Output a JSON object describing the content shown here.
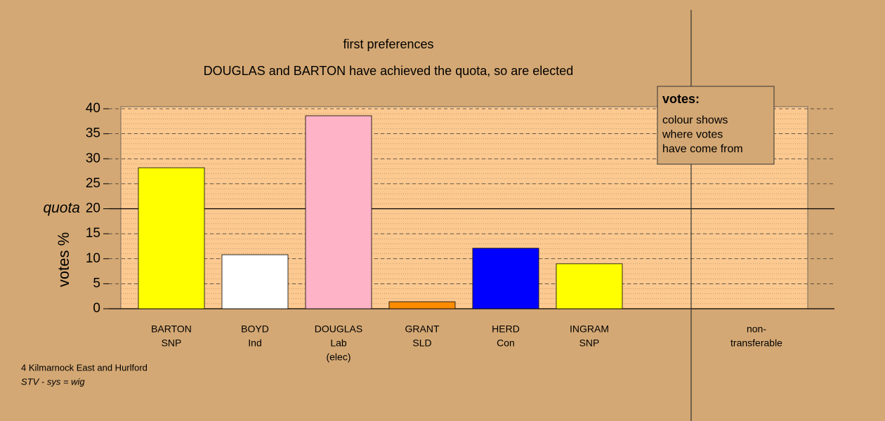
{
  "chart_data": {
    "type": "bar",
    "title": "first preferences",
    "subtitle": "DOUGLAS and BARTON have achieved the quota, so are elected",
    "y_label": "votes %",
    "quota_label": "quota",
    "quota": 20,
    "categories": [
      [
        "BARTON",
        "SNP"
      ],
      [
        "BOYD",
        "Ind"
      ],
      [
        "DOUGLAS",
        "Lab",
        "(elec)"
      ],
      [
        "GRANT",
        "SLD"
      ],
      [
        "HERD",
        "Con"
      ],
      [
        "INGRAM",
        "SNP"
      ],
      [
        "non-",
        "transferable"
      ]
    ],
    "values": [
      28.2,
      10.8,
      38.6,
      1.4,
      12.1,
      9.0,
      null
    ],
    "colors": [
      "#ffff00",
      "#ffffff",
      "#ffb3c6",
      "#ff8c00",
      "#0000ff",
      "#ffff00",
      null
    ],
    "ylim": [
      0,
      40
    ],
    "yticks": [
      0,
      5,
      10,
      15,
      20,
      25,
      30,
      35,
      40
    ],
    "grid": true,
    "legend": {
      "title": "votes:",
      "lines": [
        "colour shows",
        "where votes",
        "have come from"
      ]
    },
    "footer": [
      "4 Kilmarnock East and Hurlford",
      "STV - sys = wig"
    ]
  }
}
